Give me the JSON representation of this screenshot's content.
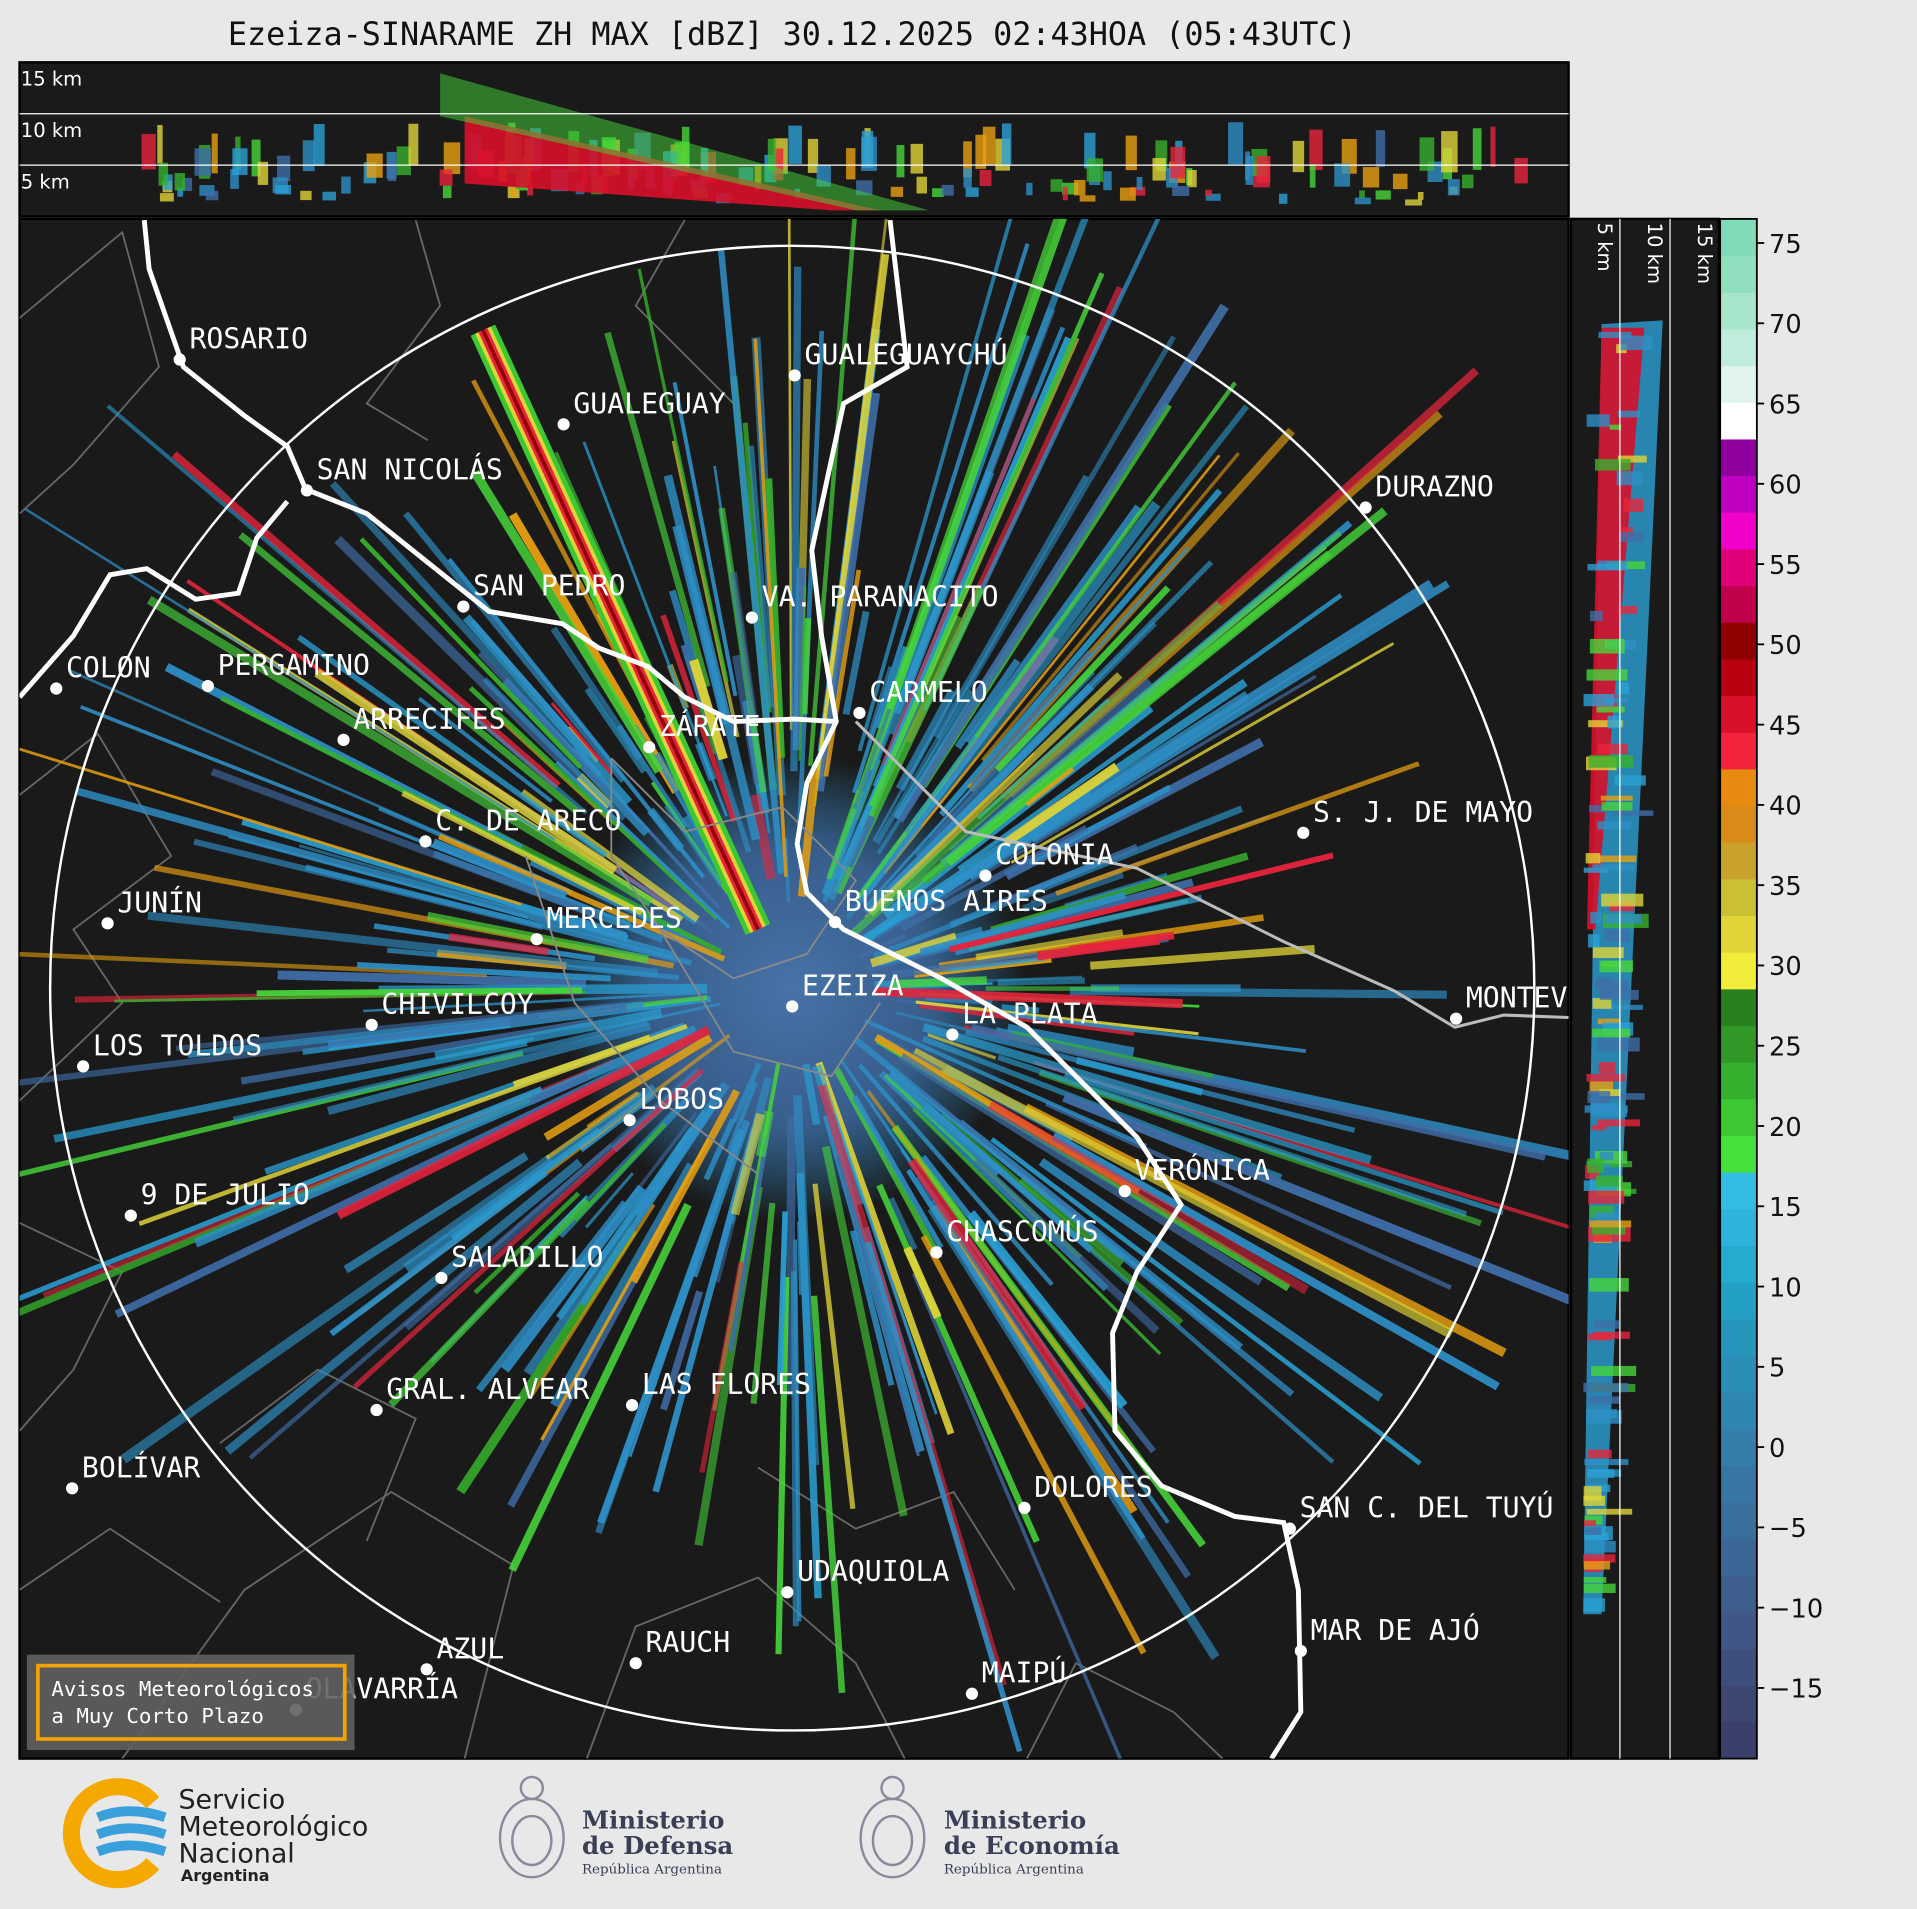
{
  "title": "Ezeiza-SINARAME ZH MAX [dBZ] 30.12.2025 02:43HOA (05:43UTC)",
  "height_panel": {
    "labels": [
      "15 km",
      "10 km",
      "5 km"
    ]
  },
  "side_panel": {
    "labels": [
      "5 km",
      "10 km",
      "15 km"
    ]
  },
  "colorbar": {
    "lim": [
      -19.4,
      76.5
    ],
    "ticks": [
      75,
      70,
      65,
      60,
      55,
      50,
      45,
      40,
      35,
      30,
      25,
      20,
      15,
      10,
      5,
      0,
      {
        "value": -5,
        "label": "−5"
      },
      {
        "value": -10,
        "label": "−10"
      },
      {
        "value": -15,
        "label": "−15"
      }
    ],
    "colors": [
      "#3b3f6b",
      "#3e4774",
      "#3f4f7d",
      "#3f5686",
      "#3e5e8e",
      "#3c6696",
      "#3a6e9d",
      "#3776a4",
      "#337eab",
      "#2f86b1",
      "#2b8eb7",
      "#2796bd",
      "#23a0c4",
      "#25aad0",
      "#2eb4dc",
      "#34bde4",
      "#46e03a",
      "#3cc832",
      "#36b02c",
      "#2f9826",
      "#288020",
      "#f2ec3a",
      "#e0d438",
      "#c9c034",
      "#c8a22a",
      "#d98b18",
      "#e88a10",
      "#f2243c",
      "#d8102a",
      "#b8000e",
      "#900000",
      "#c0004a",
      "#e0007a",
      "#f000c8",
      "#c000c0",
      "#9000a0",
      "#ffffff",
      "#e0f4ec",
      "#c0ecdc",
      "#a8e6cc",
      "#90e0c0",
      "#80dcb8"
    ]
  },
  "cities": [
    {
      "label": "ROSARIO"
    },
    {
      "label": "GUALEGUAYCHÚ"
    },
    {
      "label": "GUALEGUAY"
    },
    {
      "label": "SAN NICOLÁS"
    },
    {
      "label": "DURAZNO"
    },
    {
      "label": "SAN PEDRO"
    },
    {
      "label": "VA. PARANACITO"
    },
    {
      "label": "COLON"
    },
    {
      "label": "PERGAMINO"
    },
    {
      "label": "CARMELO"
    },
    {
      "label": "ARRECIFES"
    },
    {
      "label": "ZÁRATE"
    },
    {
      "label": "S. J. DE MAYO"
    },
    {
      "label": "C. DE ARECO"
    },
    {
      "label": "COLONIA"
    },
    {
      "label": "JUNÍN"
    },
    {
      "label": "BUENOS AIRES"
    },
    {
      "label": "MERCEDES"
    },
    {
      "label": "EZEIZA"
    },
    {
      "label": "CHIVILCOY"
    },
    {
      "label": "MONTEV"
    },
    {
      "label": "LA PLATA"
    },
    {
      "label": "LOS TOLDOS"
    },
    {
      "label": "LOBOS"
    },
    {
      "label": "VERÓNICA"
    },
    {
      "label": "9 DE JULIO"
    },
    {
      "label": "CHASCOMÚS"
    },
    {
      "label": "SALADILLO"
    },
    {
      "label": "GRAL. ALVEAR"
    },
    {
      "label": "LAS FLORES"
    },
    {
      "label": "BOLÍVAR"
    },
    {
      "label": "DOLORES"
    },
    {
      "label": "SAN C. DEL TUYÚ"
    },
    {
      "label": "UDAQUIOLA"
    },
    {
      "label": "MAR DE AJÓ"
    },
    {
      "label": "RAUCH"
    },
    {
      "label": "AZUL"
    },
    {
      "label": "OLAVARRÍA"
    },
    {
      "label": "MAIPÚ"
    }
  ],
  "warning": {
    "lines": [
      "Avisos Meteorológicos",
      "a Muy Corto Plazo"
    ]
  },
  "footer": {
    "smn": [
      "Servicio",
      "Meteorológico",
      "Nacional",
      "Argentina"
    ],
    "defensa": [
      "Ministerio",
      "de Defensa",
      "República Argentina"
    ],
    "economia": [
      "Ministerio",
      "de Economía",
      "República Argentina"
    ]
  }
}
